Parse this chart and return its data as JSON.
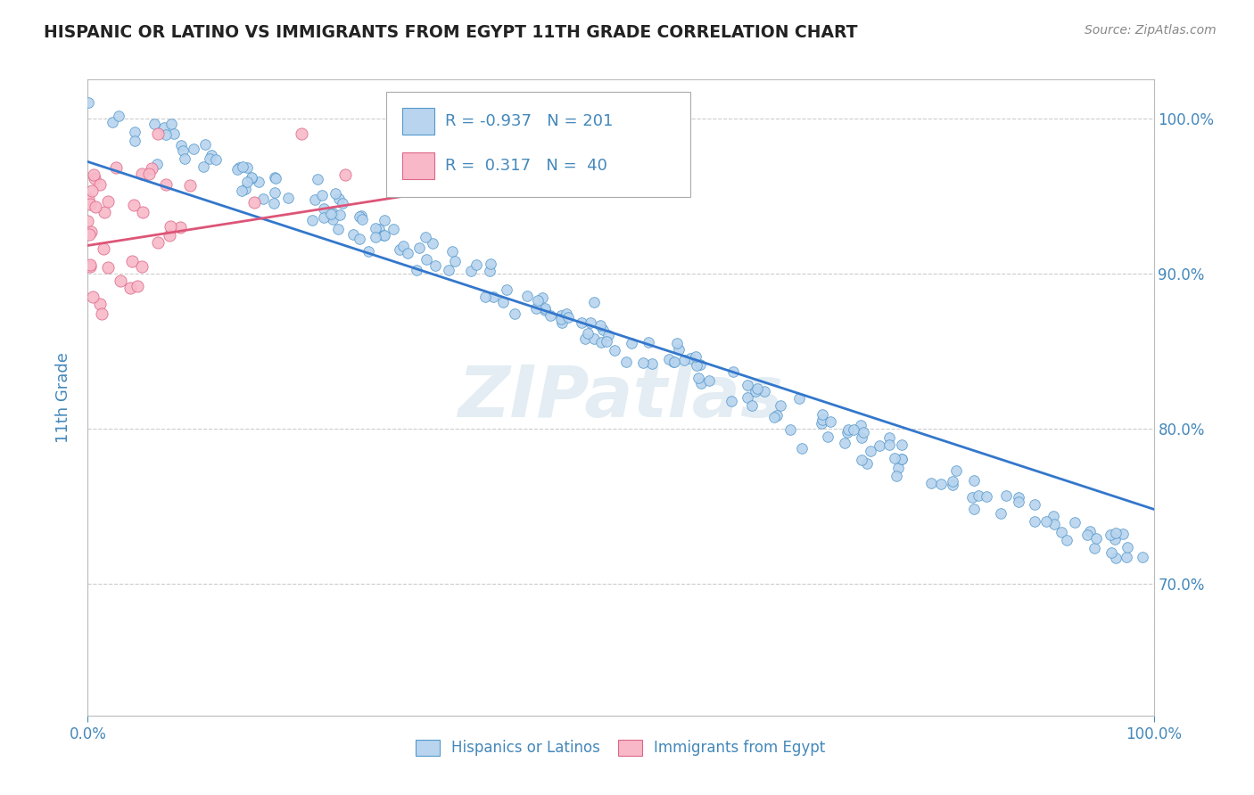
{
  "title": "HISPANIC OR LATINO VS IMMIGRANTS FROM EGYPT 11TH GRADE CORRELATION CHART",
  "source_text": "Source: ZipAtlas.com",
  "ylabel": "11th Grade",
  "xlim": [
    0.0,
    1.0
  ],
  "ylim": [
    0.615,
    1.025
  ],
  "right_yticks": [
    0.7,
    0.8,
    0.9,
    1.0
  ],
  "right_yticklabels": [
    "70.0%",
    "80.0%",
    "90.0%",
    "100.0%"
  ],
  "legend_R_blue": "-0.937",
  "legend_N_blue": "201",
  "legend_R_pink": "0.317",
  "legend_N_pink": "40",
  "blue_fill": "#b8d4ee",
  "blue_edge": "#5599cc",
  "pink_fill": "#f8b8c8",
  "pink_edge": "#dd6688",
  "blue_line_color": "#3377cc",
  "pink_line_color": "#dd5577",
  "title_color": "#222222",
  "axis_label_color": "#4488bb",
  "watermark_color": "#c8dce8",
  "grid_color": "#cccccc",
  "background_color": "#ffffff",
  "blue_trend_x0": 0.0,
  "blue_trend_y0": 0.972,
  "blue_trend_x1": 1.0,
  "blue_trend_y1": 0.748,
  "pink_trend_x0": 0.0,
  "pink_trend_y0": 0.918,
  "pink_trend_x1": 0.42,
  "pink_trend_y1": 0.963
}
